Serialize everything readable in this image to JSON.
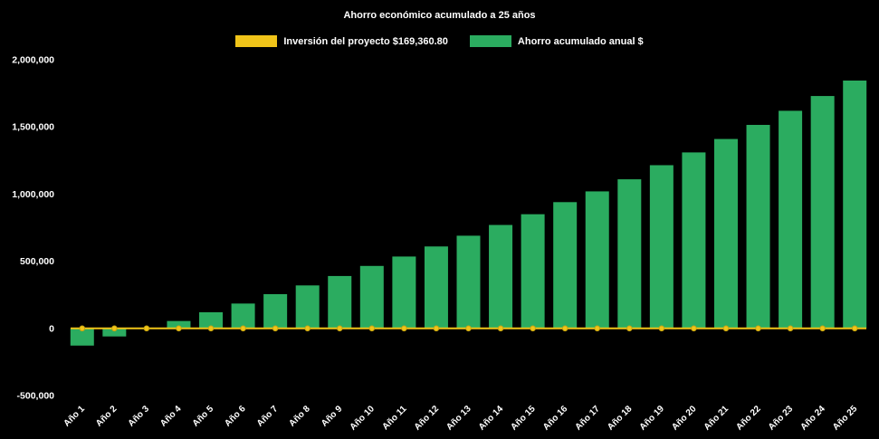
{
  "title": "Ahorro económico acumulado a 25 años",
  "colors": {
    "background": "#000000",
    "bar_green": "#2bac60",
    "line_yellow": "#f0c419",
    "marker_stroke": "#c9a50f",
    "text": "#ffffff"
  },
  "legend": {
    "items": [
      {
        "label": "Inversión del proyecto $169,360.80",
        "color": "#f0c419"
      },
      {
        "label": "Ahorro acumulado anual $",
        "color": "#2bac60"
      }
    ]
  },
  "chart_data": {
    "type": "bar",
    "title": "Ahorro económico acumulado a 25 años",
    "categories": [
      "Año 1",
      "Año 2",
      "Año 3",
      "Año 4",
      "Año 5",
      "Año 6",
      "Año 7",
      "Año 8",
      "Año 9",
      "Año 10",
      "Año 11",
      "Año 12",
      "Año 13",
      "Año 14",
      "Año 15",
      "Año 16",
      "Año 17",
      "Año 18",
      "Año 19",
      "Año 20",
      "Año 21",
      "Año 22",
      "Año 23",
      "Año 24",
      "Año 25"
    ],
    "series": [
      {
        "name": "Ahorro acumulado anual $",
        "type": "bar",
        "color": "#2bac60",
        "values": [
          -128000,
          -60000,
          5000,
          55000,
          120000,
          185000,
          255000,
          320000,
          390000,
          465000,
          535000,
          610000,
          690000,
          770000,
          850000,
          940000,
          1020000,
          1110000,
          1215000,
          1310000,
          1410000,
          1515000,
          1620000,
          1730000,
          1845000
        ]
      },
      {
        "name": "Inversión del proyecto $169,360.80",
        "type": "line",
        "color": "#f0c419",
        "investment_amount_label": "$169,360.80",
        "values": [
          0,
          0,
          0,
          0,
          0,
          0,
          0,
          0,
          0,
          0,
          0,
          0,
          0,
          0,
          0,
          0,
          0,
          0,
          0,
          0,
          0,
          0,
          0,
          0,
          0
        ]
      }
    ],
    "xlabel": "",
    "ylabel": "",
    "ylim": [
      -500000,
      2000000
    ],
    "yticks": [
      2000000,
      1500000,
      1000000,
      500000,
      0,
      -500000
    ],
    "ytick_labels": [
      "2,000,000",
      "1,500,000",
      "1,000,000",
      "500,000",
      "0",
      "-500,000"
    ],
    "grid": false,
    "legend_position": "top"
  }
}
